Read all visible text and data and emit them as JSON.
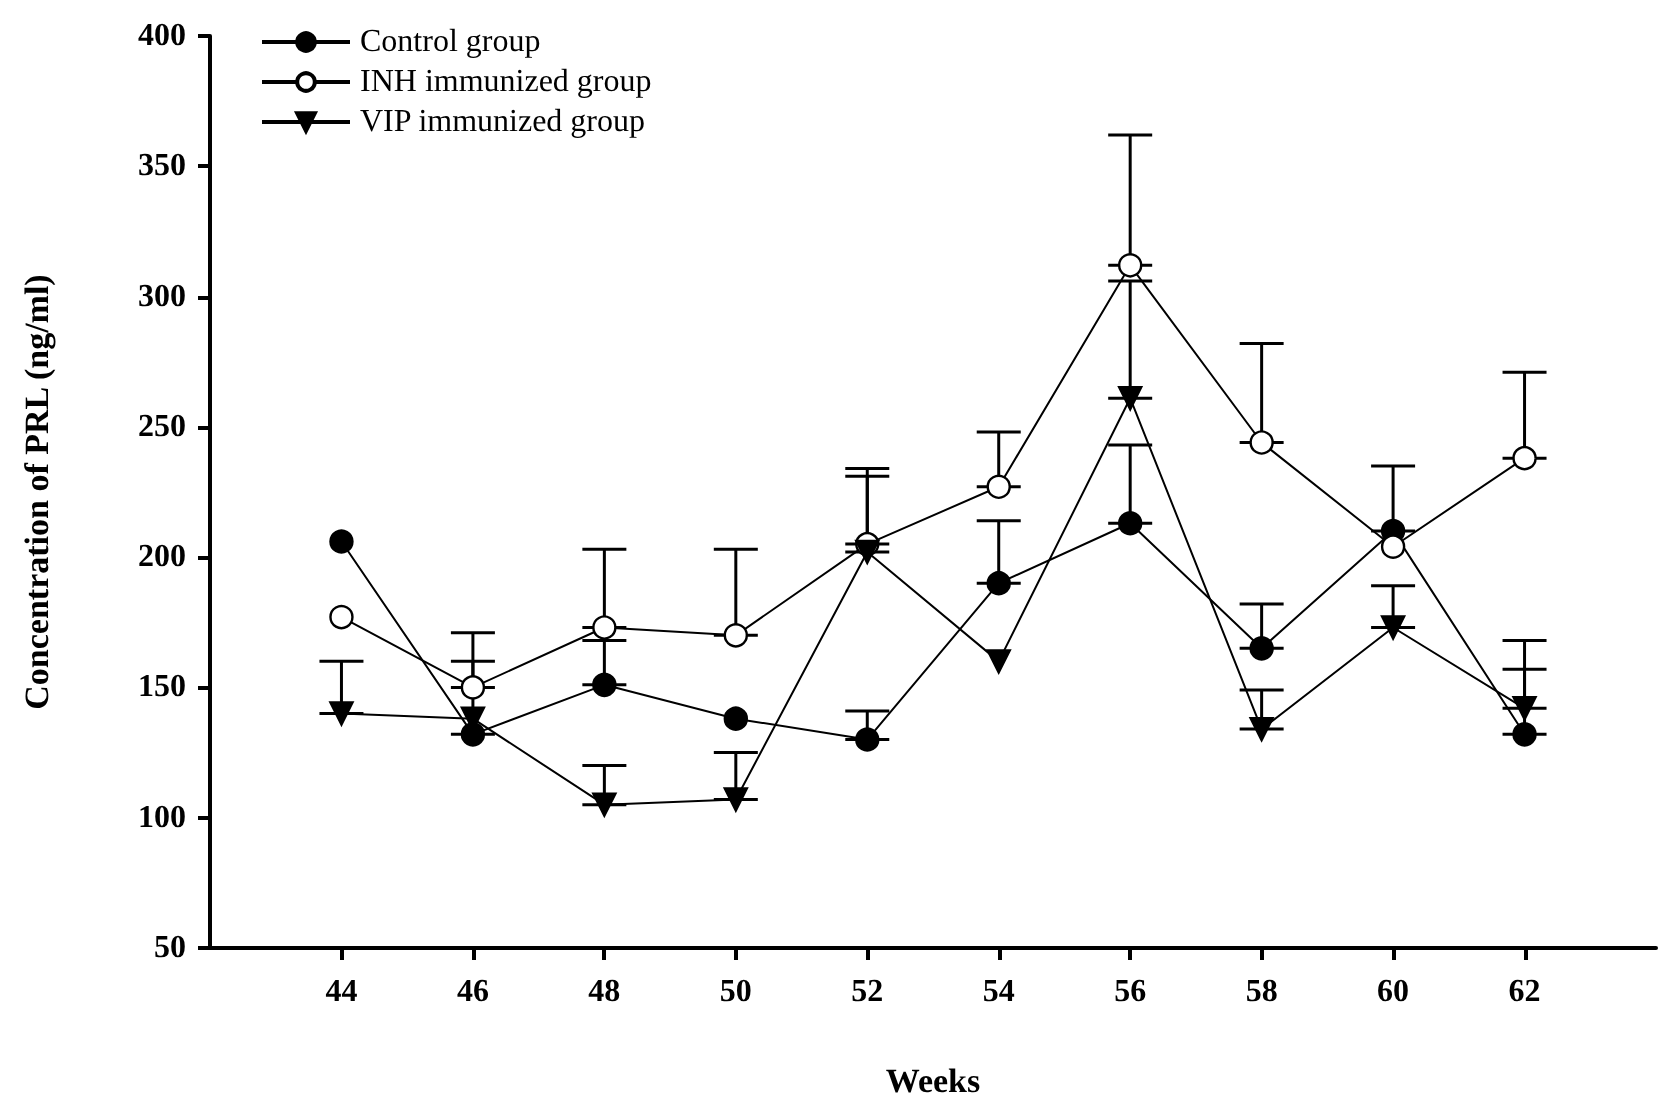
{
  "chart_data": {
    "type": "line",
    "xlabel": "Weeks",
    "ylabel": "Concentration of PRL (ng/ml)",
    "x": [
      44,
      46,
      48,
      50,
      52,
      54,
      56,
      58,
      60,
      62
    ],
    "xlim": [
      42,
      64
    ],
    "xticks": [
      44,
      46,
      48,
      50,
      52,
      54,
      56,
      58,
      60,
      62
    ],
    "ylim": [
      50,
      400
    ],
    "yticks": [
      50,
      100,
      150,
      200,
      250,
      300,
      350,
      400
    ],
    "grid": false,
    "legend": "top left",
    "line_style": "solid",
    "series": [
      {
        "name": "Control group",
        "color": "#000000",
        "marker": "circle",
        "values": [
          206,
          132,
          151,
          138,
          130,
          190,
          213,
          165,
          210,
          132
        ],
        "errors": [
          null,
          [
            132,
            160
          ],
          [
            151,
            168
          ],
          null,
          [
            130,
            141
          ],
          [
            190,
            214
          ],
          [
            213,
            243
          ],
          [
            165,
            182
          ],
          [
            210,
            235
          ],
          [
            132,
            157
          ]
        ]
      },
      {
        "name": "INH immunized group",
        "color": "#000000",
        "marker": "emptyCircle",
        "values": [
          177,
          150,
          173,
          170,
          205,
          227,
          312,
          244,
          204,
          238
        ],
        "errors": [
          null,
          [
            150,
            171
          ],
          [
            173,
            203
          ],
          [
            170,
            203
          ],
          [
            205,
            234
          ],
          [
            227,
            248
          ],
          [
            312,
            362
          ],
          [
            244,
            282
          ],
          null,
          [
            238,
            271
          ]
        ]
      },
      {
        "name": "VIP immunized group",
        "color": "#000000",
        "marker": "triangleDown",
        "values": [
          140,
          138,
          105,
          107,
          202,
          160,
          261,
          134,
          173,
          142
        ],
        "errors": [
          [
            140,
            160
          ],
          null,
          [
            105,
            120
          ],
          [
            107,
            125
          ],
          [
            202,
            231
          ],
          null,
          [
            261,
            306
          ],
          [
            134,
            149
          ],
          [
            173,
            189
          ],
          [
            142,
            168
          ]
        ]
      }
    ]
  }
}
